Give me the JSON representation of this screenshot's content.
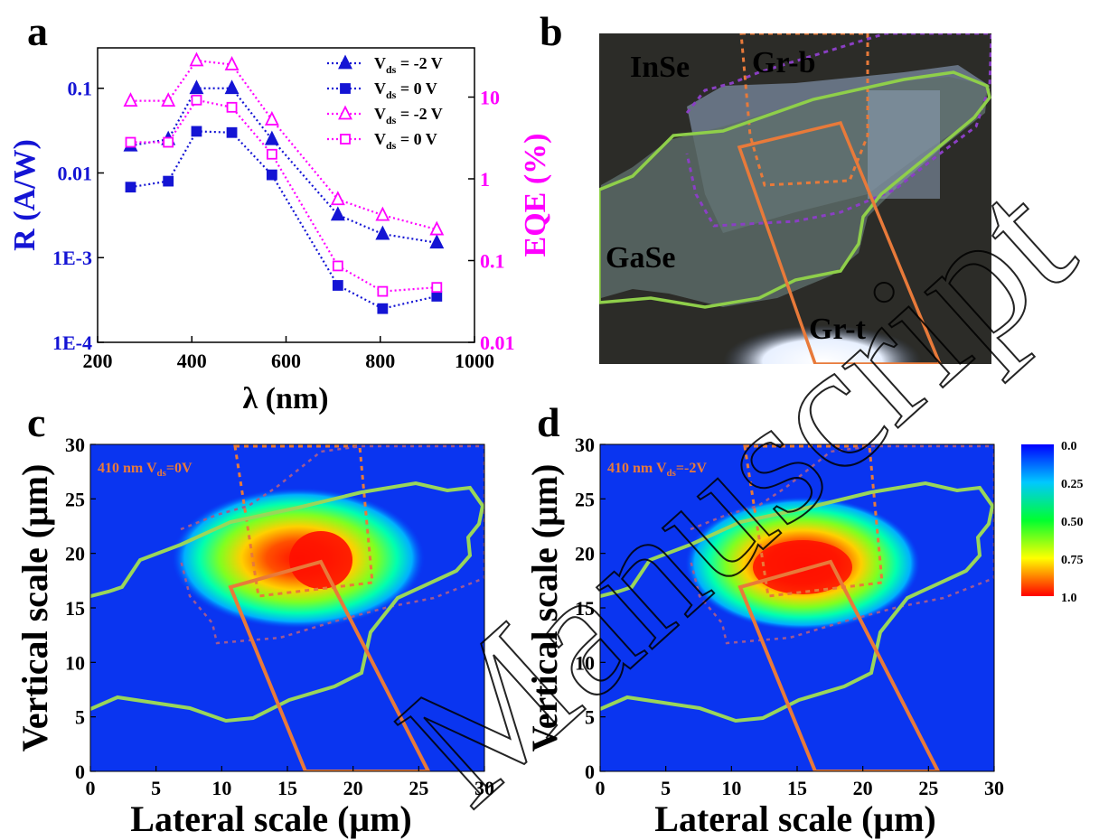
{
  "chart_data": [
    {
      "panel": "a",
      "type": "line",
      "xlabel": "λ (nm)",
      "ylabel_left": "R (A/W)",
      "ylabel_right": "EQE (%)",
      "xlim": [
        200,
        1000
      ],
      "ylim_left": [
        0.0001,
        0.3
      ],
      "ylim_right": [
        0.01,
        40
      ],
      "yscale": "log",
      "x_ticks": [
        "200",
        "400",
        "600",
        "800",
        "1000"
      ],
      "y_ticks_left": [
        "1E-4",
        "1E-3",
        "0.01",
        "0.1"
      ],
      "y_ticks_right": [
        "0.01",
        "0.1",
        "1",
        "10"
      ],
      "legend_position": "top-right",
      "x": [
        270,
        350,
        410,
        485,
        570,
        710,
        805,
        920
      ],
      "series": [
        {
          "name": "V_ds = -2 V",
          "axis": "left",
          "marker": "filled-triangle",
          "color": "#1414d4",
          "values": [
            0.021,
            0.025,
            0.1,
            0.1,
            0.025,
            0.0032,
            0.0019,
            0.0015
          ]
        },
        {
          "name": "V_ds = 0 V",
          "axis": "left",
          "marker": "filled-square",
          "color": "#1414d4",
          "values": [
            0.0068,
            0.008,
            0.031,
            0.03,
            0.0095,
            0.00047,
            0.00025,
            0.00035
          ]
        },
        {
          "name": "V_ds = -2 V",
          "axis": "right",
          "marker": "open-triangle",
          "color": "#ff00ff",
          "values": [
            9,
            9,
            28,
            25,
            5.3,
            0.56,
            0.36,
            0.24
          ]
        },
        {
          "name": "V_ds = 0 V",
          "axis": "right",
          "marker": "open-square",
          "color": "#ff00ff",
          "values": [
            2.8,
            2.8,
            9.2,
            7.5,
            2.0,
            0.086,
            0.042,
            0.047
          ]
        }
      ],
      "legend_entries": [
        {
          "prefix": "V",
          "sub": "ds",
          "suffix": " = -2 V"
        },
        {
          "prefix": "V",
          "sub": "ds",
          "suffix": " = 0 V"
        },
        {
          "prefix": "V",
          "sub": "ds",
          "suffix": " = -2 V"
        },
        {
          "prefix": "V",
          "sub": "ds",
          "suffix": " = 0 V"
        }
      ]
    },
    {
      "panel": "c",
      "type": "heatmap",
      "annotation": {
        "prefix": "410 nm V",
        "sub": "ds",
        "suffix": "=0V"
      },
      "xlabel": "Lateral scale (μm)",
      "ylabel": "Vertical scale (μm)",
      "xlim": [
        0,
        30
      ],
      "ylim": [
        0,
        30
      ],
      "x_ticks": [
        "0",
        "5",
        "10",
        "15",
        "20",
        "25",
        "30"
      ],
      "y_ticks": [
        "0",
        "5",
        "10",
        "15",
        "20",
        "25",
        "30"
      ],
      "hotspot_center": [
        15.5,
        19.5
      ],
      "peak_center": [
        18,
        19.5
      ],
      "max_value": 1.0
    },
    {
      "panel": "d",
      "type": "heatmap",
      "annotation": {
        "prefix": "410 nm V",
        "sub": "ds",
        "suffix": "=-2V"
      },
      "xlabel": "Lateral scale (μm)",
      "ylabel": "Vertical scale (μm)",
      "xlim": [
        0,
        30
      ],
      "ylim": [
        0,
        30
      ],
      "x_ticks": [
        "0",
        "5",
        "10",
        "15",
        "20",
        "25",
        "30"
      ],
      "y_ticks": [
        "0",
        "5",
        "10",
        "15",
        "20",
        "25",
        "30"
      ],
      "hotspot_center": [
        15.5,
        19
      ],
      "peak_center": [
        15.5,
        19
      ],
      "max_value": 1.0
    }
  ],
  "panels": {
    "a": "a",
    "b": "b",
    "c": "c",
    "d": "d"
  },
  "photo": {
    "labels": {
      "inse": "InSe",
      "grb": "Gr-b",
      "gase": "GaSe",
      "grt": "Gr-t"
    },
    "colors": {
      "inse": "#8a3fc4",
      "grb": "#f0a000",
      "gase": "#8fcf4a",
      "grt": "#f0b000"
    }
  },
  "colorbar": {
    "ticks": [
      "0.0",
      "0.25",
      "0.50",
      "0.75",
      "1.0"
    ],
    "colors": [
      "#0000ff",
      "#00ccff",
      "#00ff40",
      "#ffff00",
      "#ff0000"
    ]
  },
  "outline_colors": {
    "gase": "#9ad65a",
    "inse": "#a05a90",
    "graphene": "#e87a3a"
  },
  "watermark": "Manuscript"
}
